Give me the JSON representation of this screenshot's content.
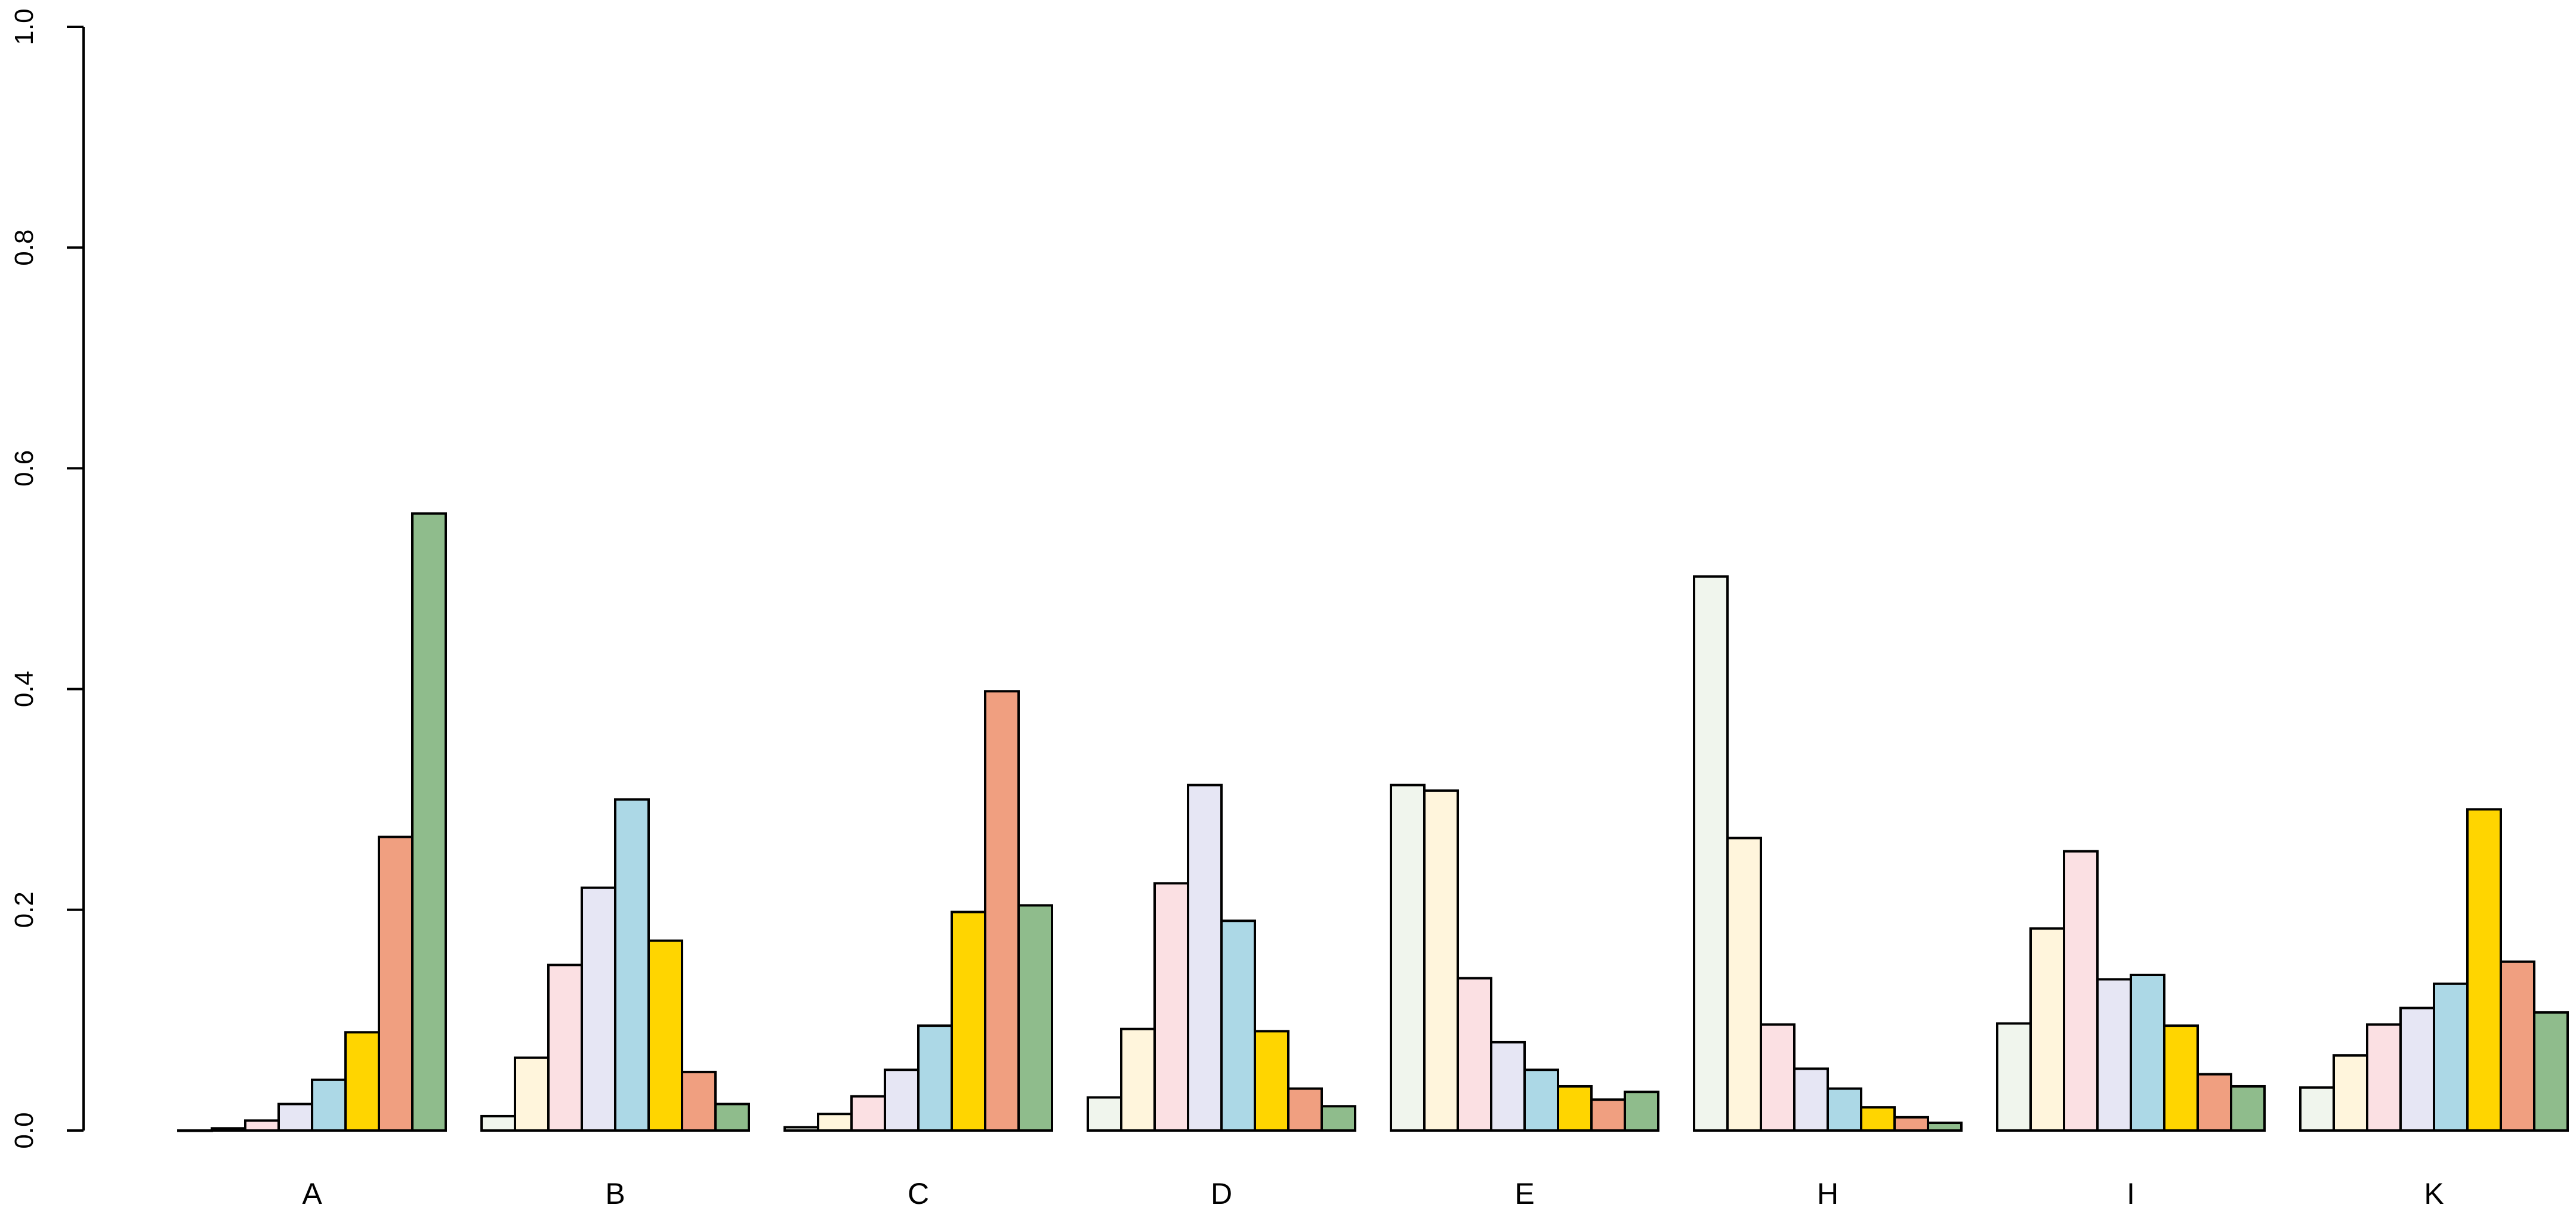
{
  "chart_data": {
    "type": "bar",
    "title": "",
    "xlabel": "",
    "ylabel": "",
    "ylim": [
      0,
      1
    ],
    "yticks": [
      "0.0",
      "0.2",
      "0.4",
      "0.6",
      "0.8",
      "1.0"
    ],
    "grid": false,
    "legend": "none",
    "categories": [
      "A",
      "B",
      "C",
      "D",
      "E",
      "H",
      "I",
      "K"
    ],
    "series": [
      {
        "color": "#f0f5ed",
        "values": [
          0.0,
          0.013,
          0.003,
          0.03,
          0.313,
          0.502,
          0.097,
          0.039
        ]
      },
      {
        "color": "#fff5dc",
        "values": [
          0.002,
          0.066,
          0.015,
          0.092,
          0.308,
          0.265,
          0.183,
          0.068
        ]
      },
      {
        "color": "#fbe0e3",
        "values": [
          0.009,
          0.15,
          0.031,
          0.224,
          0.138,
          0.096,
          0.253,
          0.096
        ]
      },
      {
        "color": "#e6e6f4",
        "values": [
          0.024,
          0.22,
          0.055,
          0.313,
          0.08,
          0.056,
          0.137,
          0.111
        ]
      },
      {
        "color": "#acd8e6",
        "values": [
          0.046,
          0.3,
          0.095,
          0.19,
          0.055,
          0.038,
          0.141,
          0.133
        ]
      },
      {
        "color": "#ffd500",
        "values": [
          0.089,
          0.172,
          0.198,
          0.09,
          0.04,
          0.021,
          0.095,
          0.291
        ]
      },
      {
        "color": "#f09f80",
        "values": [
          0.266,
          0.053,
          0.398,
          0.038,
          0.028,
          0.012,
          0.051,
          0.153
        ]
      },
      {
        "color": "#8fbc8c",
        "values": [
          0.559,
          0.024,
          0.204,
          0.022,
          0.035,
          0.007,
          0.04,
          0.107
        ]
      }
    ]
  }
}
